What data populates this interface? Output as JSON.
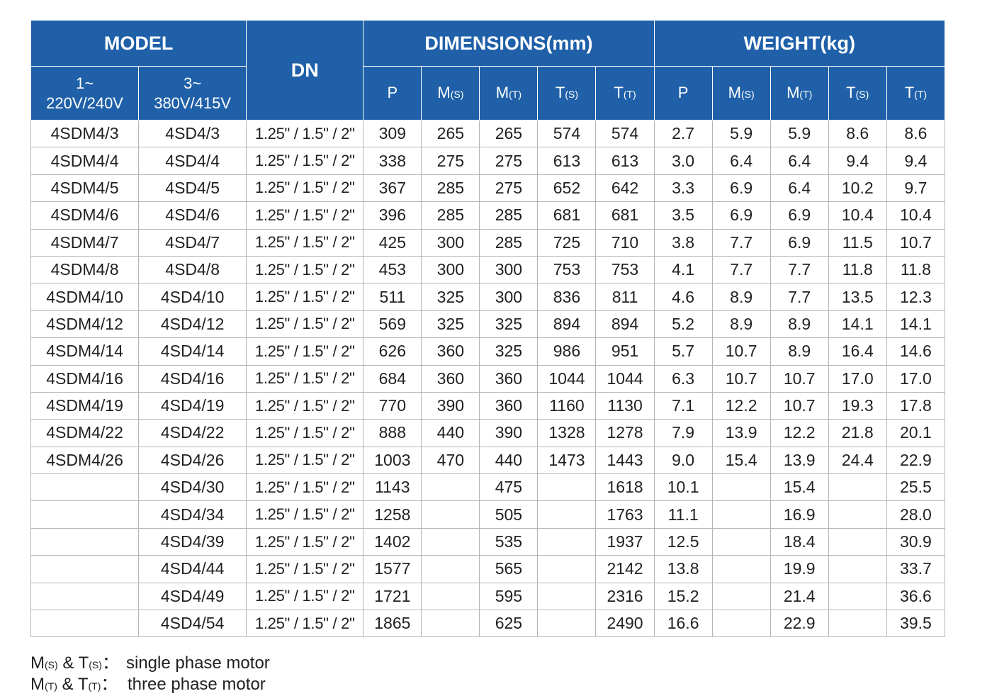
{
  "header": {
    "model": "MODEL",
    "dn": "DN",
    "dimensions": "DIMENSIONS(mm)",
    "weight": "WEIGHT(kg)",
    "single_phase_line1": "1~",
    "single_phase_line2": "220V/240V",
    "three_phase_line1": "3~",
    "three_phase_line2": "380V/415V",
    "sub_columns": [
      {
        "main": "P",
        "sub": ""
      },
      {
        "main": "M",
        "sub": "(S)"
      },
      {
        "main": "M",
        "sub": "(T)"
      },
      {
        "main": "T",
        "sub": "(S)"
      },
      {
        "main": "T",
        "sub": "(T)"
      }
    ]
  },
  "rows": [
    [
      "4SDM4/3",
      "4SD4/3",
      "1.25\" / 1.5\" / 2\"",
      "309",
      "265",
      "265",
      "574",
      "574",
      "2.7",
      "5.9",
      "5.9",
      "8.6",
      "8.6"
    ],
    [
      "4SDM4/4",
      "4SD4/4",
      "1.25\" / 1.5\" / 2\"",
      "338",
      "275",
      "275",
      "613",
      "613",
      "3.0",
      "6.4",
      "6.4",
      "9.4",
      "9.4"
    ],
    [
      "4SDM4/5",
      "4SD4/5",
      "1.25\" / 1.5\" / 2\"",
      "367",
      "285",
      "275",
      "652",
      "642",
      "3.3",
      "6.9",
      "6.4",
      "10.2",
      "9.7"
    ],
    [
      "4SDM4/6",
      "4SD4/6",
      "1.25\" / 1.5\" / 2\"",
      "396",
      "285",
      "285",
      "681",
      "681",
      "3.5",
      "6.9",
      "6.9",
      "10.4",
      "10.4"
    ],
    [
      "4SDM4/7",
      "4SD4/7",
      "1.25\" / 1.5\" / 2\"",
      "425",
      "300",
      "285",
      "725",
      "710",
      "3.8",
      "7.7",
      "6.9",
      "11.5",
      "10.7"
    ],
    [
      "4SDM4/8",
      "4SD4/8",
      "1.25\" / 1.5\" / 2\"",
      "453",
      "300",
      "300",
      "753",
      "753",
      "4.1",
      "7.7",
      "7.7",
      "11.8",
      "11.8"
    ],
    [
      "4SDM4/10",
      "4SD4/10",
      "1.25\" / 1.5\" / 2\"",
      "511",
      "325",
      "300",
      "836",
      "811",
      "4.6",
      "8.9",
      "7.7",
      "13.5",
      "12.3"
    ],
    [
      "4SDM4/12",
      "4SD4/12",
      "1.25\" / 1.5\" / 2\"",
      "569",
      "325",
      "325",
      "894",
      "894",
      "5.2",
      "8.9",
      "8.9",
      "14.1",
      "14.1"
    ],
    [
      "4SDM4/14",
      "4SD4/14",
      "1.25\" / 1.5\" / 2\"",
      "626",
      "360",
      "325",
      "986",
      "951",
      "5.7",
      "10.7",
      "8.9",
      "16.4",
      "14.6"
    ],
    [
      "4SDM4/16",
      "4SD4/16",
      "1.25\" / 1.5\" / 2\"",
      "684",
      "360",
      "360",
      "1044",
      "1044",
      "6.3",
      "10.7",
      "10.7",
      "17.0",
      "17.0"
    ],
    [
      "4SDM4/19",
      "4SD4/19",
      "1.25\" / 1.5\" / 2\"",
      "770",
      "390",
      "360",
      "1160",
      "1130",
      "7.1",
      "12.2",
      "10.7",
      "19.3",
      "17.8"
    ],
    [
      "4SDM4/22",
      "4SD4/22",
      "1.25\" / 1.5\" / 2\"",
      "888",
      "440",
      "390",
      "1328",
      "1278",
      "7.9",
      "13.9",
      "12.2",
      "21.8",
      "20.1"
    ],
    [
      "4SDM4/26",
      "4SD4/26",
      "1.25\" / 1.5\" / 2\"",
      "1003",
      "470",
      "440",
      "1473",
      "1443",
      "9.0",
      "15.4",
      "13.9",
      "24.4",
      "22.9"
    ],
    [
      "",
      "4SD4/30",
      "1.25\" / 1.5\" / 2\"",
      "1143",
      "",
      "475",
      "",
      "1618",
      "10.1",
      "",
      "15.4",
      "",
      "25.5"
    ],
    [
      "",
      "4SD4/34",
      "1.25\" / 1.5\" / 2\"",
      "1258",
      "",
      "505",
      "",
      "1763",
      "11.1",
      "",
      "16.9",
      "",
      "28.0"
    ],
    [
      "",
      "4SD4/39",
      "1.25\" / 1.5\" / 2\"",
      "1402",
      "",
      "535",
      "",
      "1937",
      "12.5",
      "",
      "18.4",
      "",
      "30.9"
    ],
    [
      "",
      "4SD4/44",
      "1.25\" / 1.5\" / 2\"",
      "1577",
      "",
      "565",
      "",
      "2142",
      "13.8",
      "",
      "19.9",
      "",
      "33.7"
    ],
    [
      "",
      "4SD4/49",
      "1.25\" / 1.5\" / 2\"",
      "1721",
      "",
      "595",
      "",
      "2316",
      "15.2",
      "",
      "21.4",
      "",
      "36.6"
    ],
    [
      "",
      "4SD4/54",
      "1.25\" / 1.5\" / 2\"",
      "1865",
      "",
      "625",
      "",
      "2490",
      "16.6",
      "",
      "22.9",
      "",
      "39.5"
    ]
  ],
  "legend": {
    "single": {
      "m": "M",
      "m_sub": "(S)",
      "amp": " & ",
      "t": "T",
      "t_sub": "(S)",
      "sep": "：",
      "text": "single phase motor"
    },
    "three": {
      "m": "M",
      "m_sub": "(T)",
      "amp": " & ",
      "t": "T",
      "t_sub": "(T)",
      "sep": "：",
      "text": "three phase motor"
    }
  },
  "colors": {
    "header_bg": "#1f60a8",
    "header_text": "#ffffff",
    "grid": "#b5b5b5",
    "text": "#231f20"
  }
}
